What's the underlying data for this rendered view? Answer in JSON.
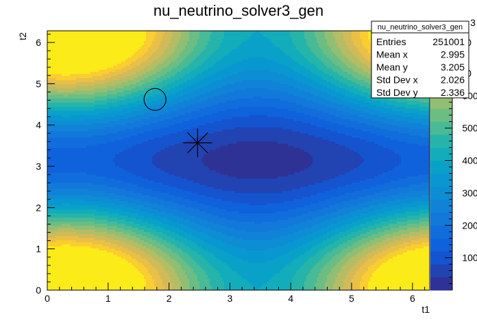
{
  "chart_data": {
    "type": "heatmap",
    "style": "filled-contour",
    "title": "nu_neutrino_solver3_gen",
    "xlabel": "t1",
    "ylabel": "t2",
    "xlim": [
      0,
      6.283
    ],
    "ylim": [
      0,
      6.283
    ],
    "x_ticks": [
      "0",
      "1",
      "2",
      "3",
      "4",
      "5",
      "6"
    ],
    "y_ticks": [
      "0",
      "1",
      "2",
      "3",
      "4",
      "5",
      "6"
    ],
    "palette_ticks": [
      "100",
      "200",
      "300",
      "400",
      "500",
      "600"
    ],
    "palette_partial_labels": [
      "3",
      "0",
      "0"
    ],
    "z_range": [
      0,
      800
    ],
    "n_contours": 20,
    "palette_name": "ROOT kBird",
    "model": {
      "description_of_shape": "minimum basin centered near (t1=3.45, t2=3.15); maxima at corners near (0.3,0) and (6.2,0), (0.3,6.2)",
      "min_value": 20,
      "max_value": 800
    },
    "markers": [
      {
        "type": "circle",
        "x": 1.77,
        "y": 4.62
      },
      {
        "type": "star",
        "x": 2.47,
        "y": 3.57
      }
    ],
    "stats": {
      "name": "nu_neutrino_solver3_gen",
      "rows": [
        {
          "label": "Entries",
          "value": "251001"
        },
        {
          "label": "Mean x",
          "value": "2.995"
        },
        {
          "label": "Mean y",
          "value": "3.205"
        },
        {
          "label": "Std Dev x",
          "value": "2.026"
        },
        {
          "label": "Std Dev y",
          "value": "2.336"
        }
      ]
    }
  }
}
